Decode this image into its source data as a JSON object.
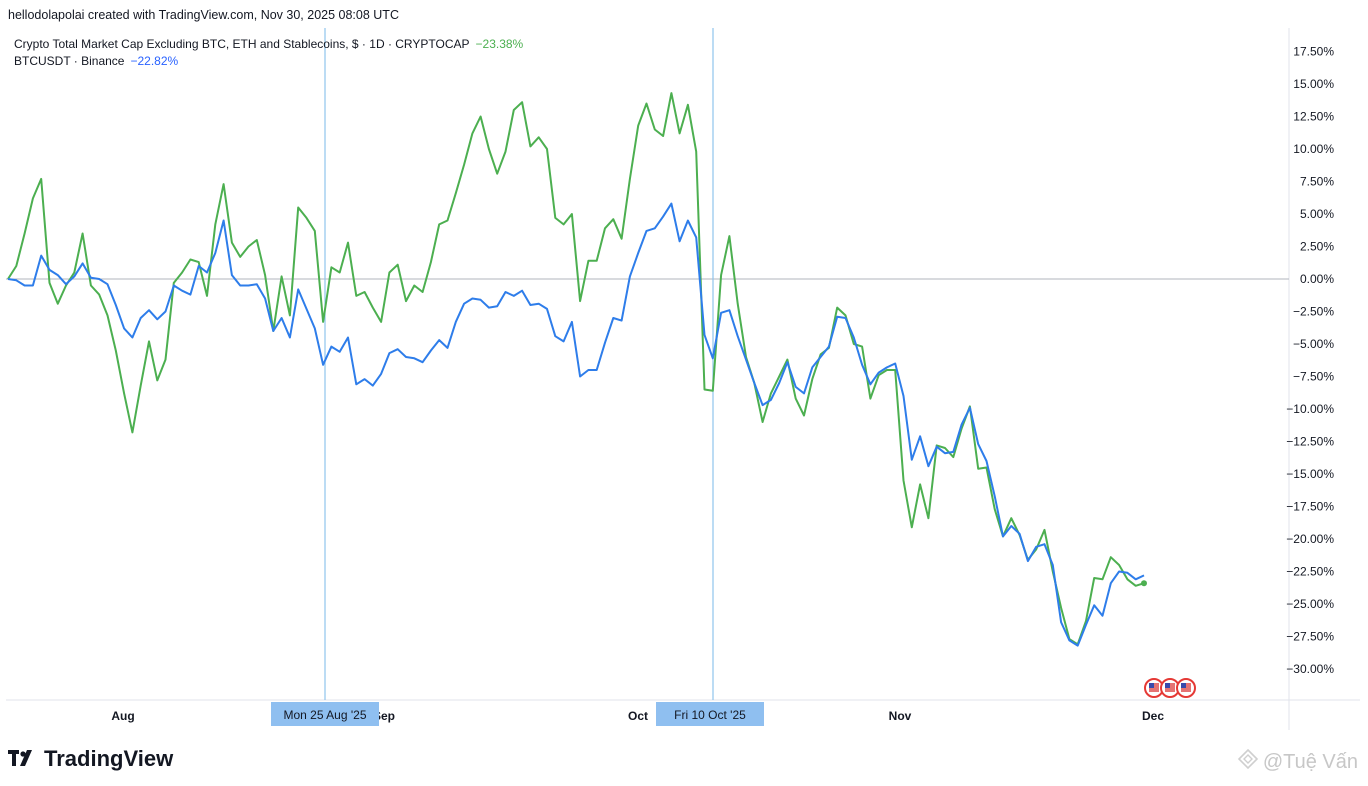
{
  "header": {
    "created_text": "hellodolapolai created with TradingView.com, Nov 30, 2025 08:08 UTC"
  },
  "legend": {
    "series1_label": "Crypto Total Market Cap Excluding BTC, ETH and Stablecoins, $ · 1D · CRYPTOCAP",
    "series1_change": "−23.38%",
    "series2_label": "BTCUSDT · Binance",
    "series2_change": "−22.82%"
  },
  "colors": {
    "green": "#4caf50",
    "blue": "#2e7dea",
    "crosshair": "#90c4ec",
    "tag_bg": "#8fbff0",
    "zero_line": "#b2b5be"
  },
  "footer": {
    "brand": "TradingView",
    "watermark": "@Tuệ Vấn"
  },
  "chart_data": {
    "type": "line",
    "x_axis_labels": [
      "Aug",
      "Sep",
      "Oct",
      "Nov",
      "Dec"
    ],
    "y_axis": {
      "unit": "%",
      "range": [
        -32,
        18.5
      ],
      "tick_values": [
        17.5,
        15,
        12.5,
        10,
        7.5,
        5,
        2.5,
        0,
        -2.5,
        -5,
        -7.5,
        -10,
        -12.5,
        -15,
        -17.5,
        -20,
        -22.5,
        -25,
        -27.5,
        -30
      ],
      "tick_labels": [
        "17.50%",
        "15.00%",
        "12.50%",
        "10.00%",
        "7.50%",
        "5.00%",
        "2.50%",
        "0.00%",
        "−2.50%",
        "−5.00%",
        "−7.50%",
        "−10.00%",
        "−12.50%",
        "−15.00%",
        "−17.50%",
        "−20.00%",
        "−22.50%",
        "−25.00%",
        "−27.50%",
        "−30.00%"
      ],
      "position": "right"
    },
    "crosshairs": [
      {
        "label": "Mon 25 Aug '25",
        "date": "2025-08-25"
      },
      {
        "label": "Fri 10 Oct '25",
        "date": "2025-10-10"
      }
    ],
    "grid": false,
    "legend_position": "top-left",
    "series": [
      {
        "name": "Crypto Total Market Cap Excluding BTC, ETH and Stablecoins",
        "color": "green",
        "end_value": -23.38,
        "values": [
          0,
          1,
          3.5,
          6.2,
          7.7,
          -0.3,
          -1.9,
          -0.5,
          0.5,
          3.5,
          -0.5,
          -1.2,
          -2.8,
          -5.5,
          -8.8,
          -11.8,
          -8.2,
          -4.8,
          -7.8,
          -6.2,
          -0.3,
          0.5,
          1.5,
          1.3,
          -1.3,
          4.2,
          7.3,
          2.8,
          1.7,
          2.5,
          3.0,
          0.3,
          -4.0,
          0.2,
          -2.8,
          5.5,
          4.7,
          3.7,
          -3.3,
          0.9,
          0.5,
          2.8,
          -1.3,
          -1.0,
          -2.2,
          -3.3,
          0.5,
          1.1,
          -1.7,
          -0.5,
          -1.0,
          1.3,
          4.2,
          4.5,
          6.6,
          8.8,
          11.2,
          12.5,
          10.0,
          8.1,
          9.8,
          13.0,
          13.6,
          10.2,
          10.9,
          10.0,
          4.7,
          4.2,
          5.0,
          -1.7,
          1.4,
          1.4,
          3.9,
          4.6,
          3.1,
          7.7,
          11.8,
          13.5,
          11.5,
          11.0,
          14.3,
          11.2,
          13.4,
          9.8,
          -8.5,
          -8.6,
          0.3,
          3.3,
          -1.9,
          -6.0,
          -8.0,
          -11.0,
          -8.8,
          -7.5,
          -6.2,
          -9.2,
          -10.5,
          -7.7,
          -5.8,
          -5.3,
          -2.2,
          -2.8,
          -5.0,
          -5.2,
          -9.2,
          -7.4,
          -7.0,
          -7.0,
          -15.5,
          -19.1,
          -15.8,
          -18.4,
          -12.8,
          -13.0,
          -13.7,
          -11.5,
          -9.8,
          -14.6,
          -14.5,
          -17.7,
          -19.8,
          -18.4,
          -19.7,
          -21.6,
          -20.8,
          -19.3,
          -22.5,
          -25.3,
          -27.7,
          -28.1,
          -26.3,
          -23.0,
          -23.1,
          -21.4,
          -22.0,
          -23.1,
          -23.6,
          -23.4
        ]
      },
      {
        "name": "BTCUSDT · Binance",
        "color": "blue",
        "end_value": -22.82,
        "values": [
          0,
          -0.1,
          -0.5,
          -0.5,
          1.8,
          0.7,
          0.3,
          -0.4,
          0.2,
          1.2,
          0.1,
          0,
          -0.4,
          -2.0,
          -3.8,
          -4.5,
          -3.0,
          -2.4,
          -3.1,
          -2.5,
          -0.5,
          -0.9,
          -1.2,
          1.0,
          0.5,
          2.0,
          4.5,
          0.3,
          -0.5,
          -0.5,
          -0.4,
          -1.5,
          -4.0,
          -3.0,
          -4.5,
          -0.8,
          -2.3,
          -3.8,
          -6.6,
          -5.2,
          -5.6,
          -4.5,
          -8.1,
          -7.7,
          -8.2,
          -7.3,
          -5.7,
          -5.4,
          -6.0,
          -6.1,
          -6.4,
          -5.5,
          -4.7,
          -5.3,
          -3.3,
          -1.9,
          -1.5,
          -1.6,
          -2.2,
          -2.1,
          -1.0,
          -1.3,
          -0.9,
          -2.0,
          -1.9,
          -2.3,
          -4.4,
          -4.8,
          -3.3,
          -7.5,
          -7.0,
          -7.0,
          -4.9,
          -3.0,
          -3.2,
          0.2,
          2.0,
          3.7,
          3.9,
          4.8,
          5.8,
          2.9,
          4.5,
          3.2,
          -4.3,
          -6.1,
          -2.6,
          -2.4,
          -4.4,
          -6.2,
          -8.0,
          -9.7,
          -9.3,
          -8.0,
          -6.4,
          -8.3,
          -8.8,
          -6.8,
          -6.0,
          -5.2,
          -2.9,
          -3.0,
          -4.5,
          -6.6,
          -8.1,
          -7.2,
          -6.8,
          -6.5,
          -9.0,
          -13.9,
          -12.1,
          -14.4,
          -12.9,
          -13.4,
          -13.3,
          -11.2,
          -9.9,
          -12.7,
          -14.0,
          -16.7,
          -19.8,
          -19.0,
          -19.6,
          -21.7,
          -20.6,
          -20.4,
          -22.0,
          -26.4,
          -27.8,
          -28.2,
          -26.6,
          -25.1,
          -25.9,
          -23.4,
          -22.5,
          -22.6,
          -23.1,
          -22.8
        ]
      }
    ]
  }
}
